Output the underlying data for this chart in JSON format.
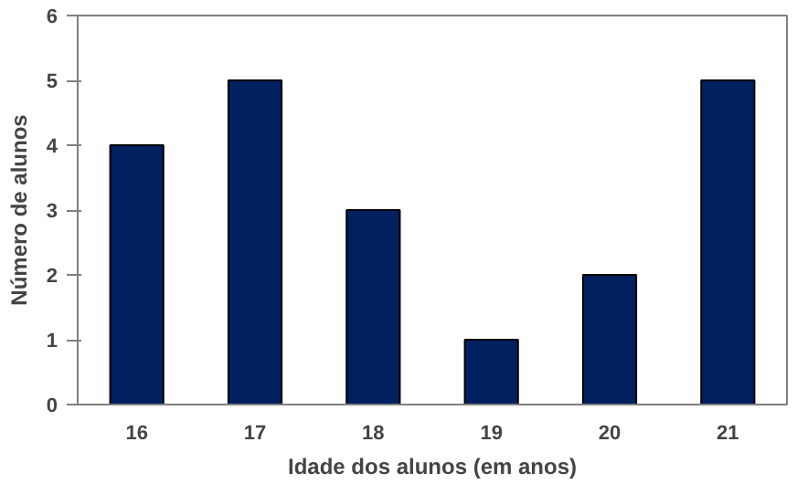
{
  "chart_data": {
    "type": "bar",
    "xlabel": "Idade dos alunos (em anos)",
    "ylabel": "Número de alunos",
    "categories": [
      "16",
      "17",
      "18",
      "19",
      "20",
      "21"
    ],
    "values": [
      4,
      5,
      3,
      1,
      2,
      5
    ],
    "color": "#002060",
    "ylim": [
      0,
      6
    ],
    "yticks": [
      0,
      1,
      2,
      3,
      4,
      5,
      6
    ],
    "grid": false
  }
}
